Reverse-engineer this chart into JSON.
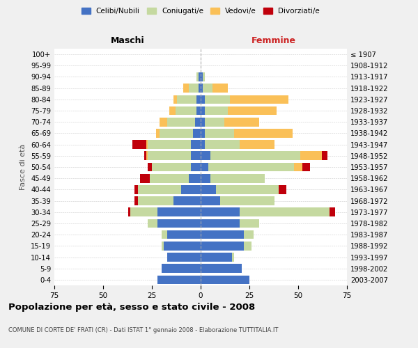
{
  "age_groups": [
    "0-4",
    "5-9",
    "10-14",
    "15-19",
    "20-24",
    "25-29",
    "30-34",
    "35-39",
    "40-44",
    "45-49",
    "50-54",
    "55-59",
    "60-64",
    "65-69",
    "70-74",
    "75-79",
    "80-84",
    "85-89",
    "90-94",
    "95-99",
    "100+"
  ],
  "birth_years": [
    "2003-2007",
    "1998-2002",
    "1993-1997",
    "1988-1992",
    "1983-1987",
    "1978-1982",
    "1973-1977",
    "1968-1972",
    "1963-1967",
    "1958-1962",
    "1953-1957",
    "1948-1952",
    "1943-1947",
    "1938-1942",
    "1933-1937",
    "1928-1932",
    "1923-1927",
    "1918-1922",
    "1913-1917",
    "1908-1912",
    "≤ 1907"
  ],
  "male": {
    "celibi": [
      22,
      20,
      17,
      19,
      17,
      22,
      22,
      14,
      10,
      6,
      5,
      5,
      5,
      4,
      3,
      2,
      2,
      1,
      1,
      0,
      0
    ],
    "coniugati": [
      0,
      0,
      0,
      1,
      3,
      5,
      14,
      18,
      22,
      20,
      20,
      22,
      22,
      17,
      14,
      11,
      10,
      5,
      1,
      0,
      0
    ],
    "vedovi": [
      0,
      0,
      0,
      0,
      0,
      0,
      0,
      0,
      0,
      0,
      0,
      1,
      1,
      2,
      4,
      3,
      2,
      3,
      0,
      0,
      0
    ],
    "divorziati": [
      0,
      0,
      0,
      0,
      0,
      0,
      1,
      2,
      2,
      5,
      2,
      1,
      7,
      0,
      0,
      0,
      0,
      0,
      0,
      0,
      0
    ]
  },
  "female": {
    "nubili": [
      25,
      21,
      16,
      22,
      22,
      20,
      20,
      10,
      8,
      5,
      4,
      5,
      2,
      2,
      2,
      2,
      2,
      1,
      1,
      0,
      0
    ],
    "coniugate": [
      0,
      0,
      1,
      4,
      5,
      10,
      46,
      28,
      32,
      28,
      44,
      46,
      18,
      15,
      10,
      12,
      13,
      5,
      1,
      0,
      0
    ],
    "vedove": [
      0,
      0,
      0,
      0,
      0,
      0,
      0,
      0,
      0,
      0,
      4,
      11,
      18,
      30,
      18,
      25,
      30,
      8,
      0,
      0,
      0
    ],
    "divorziate": [
      0,
      0,
      0,
      0,
      0,
      0,
      3,
      0,
      4,
      0,
      4,
      3,
      0,
      0,
      0,
      0,
      0,
      0,
      0,
      0,
      0
    ]
  },
  "colors": {
    "celibi_nubili": "#4472c4",
    "coniugati_e": "#c5d9a0",
    "vedovi_e": "#fac058",
    "divorziati_e": "#c0000b"
  },
  "xlim": 75,
  "title": "Popolazione per età, sesso e stato civile - 2008",
  "subtitle": "COMUNE DI CORTE DE' FRATI (CR) - Dati ISTAT 1° gennaio 2008 - Elaborazione TUTTITALIA.IT",
  "ylabel": "Fasce di età",
  "xlabel_left": "Maschi",
  "xlabel_right": "Femmine",
  "legend_labels": [
    "Celibi/Nubili",
    "Coniugati/e",
    "Vedovi/e",
    "Divorziati/e"
  ],
  "bg_color": "#f0f0f0",
  "plot_bg": "#ffffff"
}
